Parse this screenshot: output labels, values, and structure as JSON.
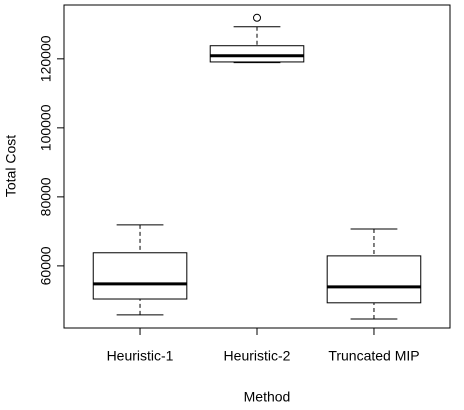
{
  "chart_data": {
    "type": "box",
    "x_label": "Method",
    "y_label": "Total Cost",
    "categories": [
      "Heuristic-1",
      "Heuristic-2",
      "Truncated MIP"
    ],
    "boxes": [
      {
        "min": 45800,
        "q1": 50400,
        "median": 54800,
        "q3": 63800,
        "max": 71900,
        "outliers": []
      },
      {
        "min": 118900,
        "q1": 119100,
        "median": 120900,
        "q3": 123800,
        "max": 129300,
        "outliers": [
          131900
        ]
      },
      {
        "min": 44600,
        "q1": 49300,
        "median": 53900,
        "q3": 62900,
        "max": 70700,
        "outliers": []
      }
    ],
    "ylim": [
      42000,
      135600
    ],
    "yticks": [
      60000,
      80000,
      100000,
      120000
    ],
    "color": "#000000"
  }
}
